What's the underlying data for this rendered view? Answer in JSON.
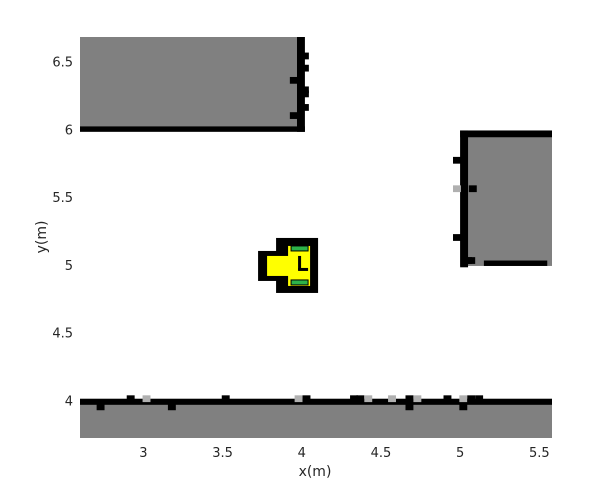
{
  "plot": {
    "xlabel": "x(m)",
    "ylabel": "y(m)",
    "xlim": [
      2.6,
      5.58
    ],
    "ylim": [
      3.73,
      6.69
    ],
    "xticks": [
      3,
      3.5,
      4,
      4.5,
      5,
      5.5
    ],
    "yticks": [
      4,
      4.5,
      5,
      5.5,
      6,
      6.5
    ],
    "xtick_labels": [
      "3",
      "3.5",
      "4",
      "4.5",
      "5",
      "5.5"
    ],
    "ytick_labels": [
      "4",
      "4.5",
      "5",
      "5.5",
      "6",
      "6.5"
    ]
  },
  "colors": {
    "background": "#ffffff",
    "free_space": "#ffffff",
    "obstacle_fill": "#808080",
    "occupied_cell": "#000000",
    "light_cell": "#b0b0b0",
    "robot_body": "#ffff00",
    "robot_wheels": "#2db34a",
    "robot_outline": "#000000"
  },
  "map": {
    "obstacles": [
      {
        "name": "top-left-block",
        "x": [
          2.6,
          4.0
        ],
        "y": [
          6.0,
          6.69
        ]
      },
      {
        "name": "right-block",
        "x": [
          5.0,
          5.58
        ],
        "y": [
          5.0,
          6.0
        ]
      },
      {
        "name": "bottom-wall",
        "x": [
          2.6,
          5.58
        ],
        "y": [
          3.73,
          4.0
        ]
      }
    ],
    "walls": [
      {
        "x": [
          2.6,
          4.02
        ],
        "y": [
          5.99,
          6.03
        ]
      },
      {
        "x": [
          3.97,
          4.02
        ],
        "y": [
          5.99,
          6.69
        ]
      },
      {
        "x": [
          5.0,
          5.58
        ],
        "y": [
          5.95,
          6.0
        ]
      },
      {
        "x": [
          5.0,
          5.05
        ],
        "y": [
          4.99,
          6.0
        ]
      },
      {
        "x": [
          5.15,
          5.55
        ],
        "y": [
          5.0,
          5.04
        ]
      },
      {
        "x": [
          2.6,
          5.58
        ],
        "y": [
          3.975,
          4.02
        ]
      }
    ],
    "cells": [
      {
        "x": 4.02,
        "y": 6.55,
        "c": "black"
      },
      {
        "x": 4.02,
        "y": 6.46,
        "c": "black"
      },
      {
        "x": 3.95,
        "y": 6.37,
        "c": "black"
      },
      {
        "x": 4.02,
        "y": 6.3,
        "c": "black"
      },
      {
        "x": 4.02,
        "y": 6.27,
        "c": "black"
      },
      {
        "x": 4.02,
        "y": 6.17,
        "c": "black"
      },
      {
        "x": 3.95,
        "y": 6.11,
        "c": "black"
      },
      {
        "x": 4.98,
        "y": 5.78,
        "c": "black"
      },
      {
        "x": 4.98,
        "y": 5.57,
        "c": "gray"
      },
      {
        "x": 5.08,
        "y": 5.57,
        "c": "black"
      },
      {
        "x": 4.98,
        "y": 5.21,
        "c": "black"
      },
      {
        "x": 5.05,
        "y": 5.04,
        "c": "black"
      },
      {
        "x": 5.07,
        "y": 5.04,
        "c": "black"
      },
      {
        "x": 2.92,
        "y": 4.02,
        "c": "black"
      },
      {
        "x": 3.02,
        "y": 4.02,
        "c": "gray"
      },
      {
        "x": 3.52,
        "y": 4.02,
        "c": "black"
      },
      {
        "x": 3.98,
        "y": 4.02,
        "c": "gray"
      },
      {
        "x": 4.03,
        "y": 4.02,
        "c": "black"
      },
      {
        "x": 4.33,
        "y": 4.02,
        "c": "black"
      },
      {
        "x": 4.37,
        "y": 4.02,
        "c": "black"
      },
      {
        "x": 4.42,
        "y": 4.02,
        "c": "gray"
      },
      {
        "x": 4.57,
        "y": 4.02,
        "c": "gray"
      },
      {
        "x": 4.68,
        "y": 4.02,
        "c": "black"
      },
      {
        "x": 4.73,
        "y": 4.02,
        "c": "gray"
      },
      {
        "x": 4.92,
        "y": 4.02,
        "c": "black"
      },
      {
        "x": 5.02,
        "y": 4.02,
        "c": "gray"
      },
      {
        "x": 5.07,
        "y": 4.02,
        "c": "black"
      },
      {
        "x": 5.12,
        "y": 4.02,
        "c": "black"
      },
      {
        "x": 2.73,
        "y": 3.96,
        "c": "black"
      },
      {
        "x": 3.18,
        "y": 3.96,
        "c": "black"
      },
      {
        "x": 4.68,
        "y": 3.96,
        "c": "black"
      },
      {
        "x": 5.02,
        "y": 3.96,
        "c": "black"
      }
    ]
  },
  "robot": {
    "x": 3.92,
    "y": 5.0,
    "heading_deg": 0
  }
}
